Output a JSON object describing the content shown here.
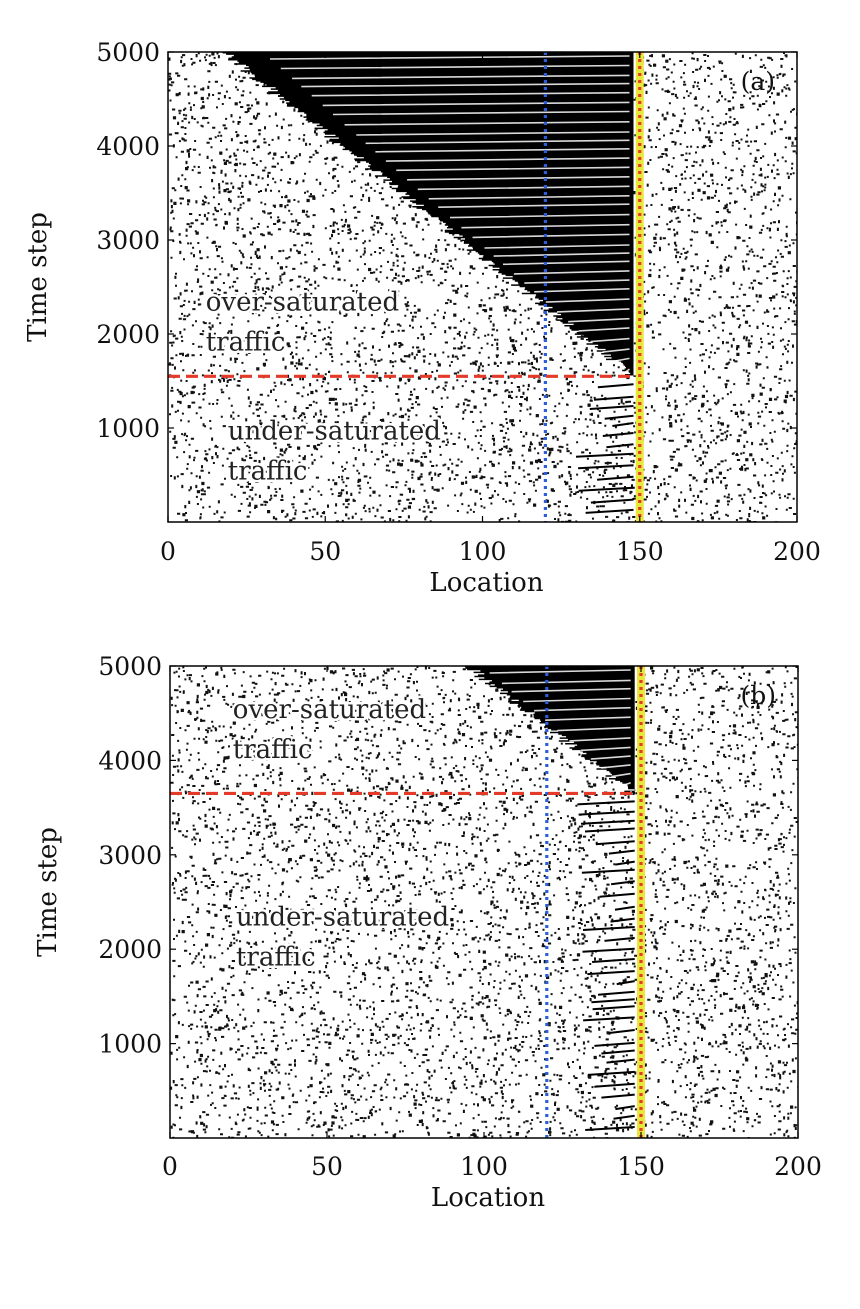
{
  "chart_data": [
    {
      "type": "scatter",
      "panel_label": "(a)",
      "xlabel": "Location",
      "ylabel": "Time step",
      "xlim": [
        0,
        200
      ],
      "ylim": [
        0,
        5000
      ],
      "x_ticks": [
        "0",
        "50",
        "100",
        "150",
        "200"
      ],
      "y_ticks": [
        "1000",
        "2000",
        "3000",
        "4000",
        "5000"
      ],
      "annotations": [
        {
          "lines": [
            "over-saturated",
            "traffic"
          ],
          "x": 12,
          "y": 2250
        },
        {
          "lines": [
            "under-saturated",
            "traffic"
          ],
          "x": 19,
          "y": 880
        }
      ],
      "reference_lines": [
        {
          "orientation": "vertical",
          "x": 120,
          "color": "#2b5fd9",
          "style": "dotted"
        },
        {
          "orientation": "vertical",
          "x": 150,
          "color": "#e8e83a",
          "style": "solid"
        },
        {
          "orientation": "vertical",
          "x": 150,
          "color": "#e43a2a",
          "style": "dotted"
        },
        {
          "orientation": "horizontal",
          "y": 1550,
          "x_end": 148,
          "color": "#e43a2a",
          "style": "dashed"
        }
      ],
      "queue_region": {
        "front_x": 148,
        "onset_y": 1550,
        "tail_x_at_top": 18
      }
    },
    {
      "type": "scatter",
      "panel_label": "(b)",
      "xlabel": "Location",
      "ylabel": "Time step",
      "xlim": [
        0,
        200
      ],
      "ylim": [
        0,
        5000
      ],
      "x_ticks": [
        "0",
        "50",
        "100",
        "150",
        "200"
      ],
      "y_ticks": [
        "1000",
        "2000",
        "3000",
        "4000",
        "5000"
      ],
      "annotations": [
        {
          "lines": [
            "over-saturated",
            "traffic"
          ],
          "x": 20,
          "y": 4450
        },
        {
          "lines": [
            "under-saturated",
            "traffic"
          ],
          "x": 21,
          "y": 2250
        }
      ],
      "reference_lines": [
        {
          "orientation": "vertical",
          "x": 120,
          "color": "#2b5fd9",
          "style": "dotted"
        },
        {
          "orientation": "vertical",
          "x": 150,
          "color": "#e8e83a",
          "style": "solid"
        },
        {
          "orientation": "vertical",
          "x": 150,
          "color": "#e43a2a",
          "style": "dotted"
        },
        {
          "orientation": "horizontal",
          "y": 3650,
          "x_end": 148,
          "color": "#e43a2a",
          "style": "dashed"
        }
      ],
      "queue_region": {
        "front_x": 148,
        "onset_y": 3650,
        "tail_x_at_top": 95
      }
    }
  ]
}
